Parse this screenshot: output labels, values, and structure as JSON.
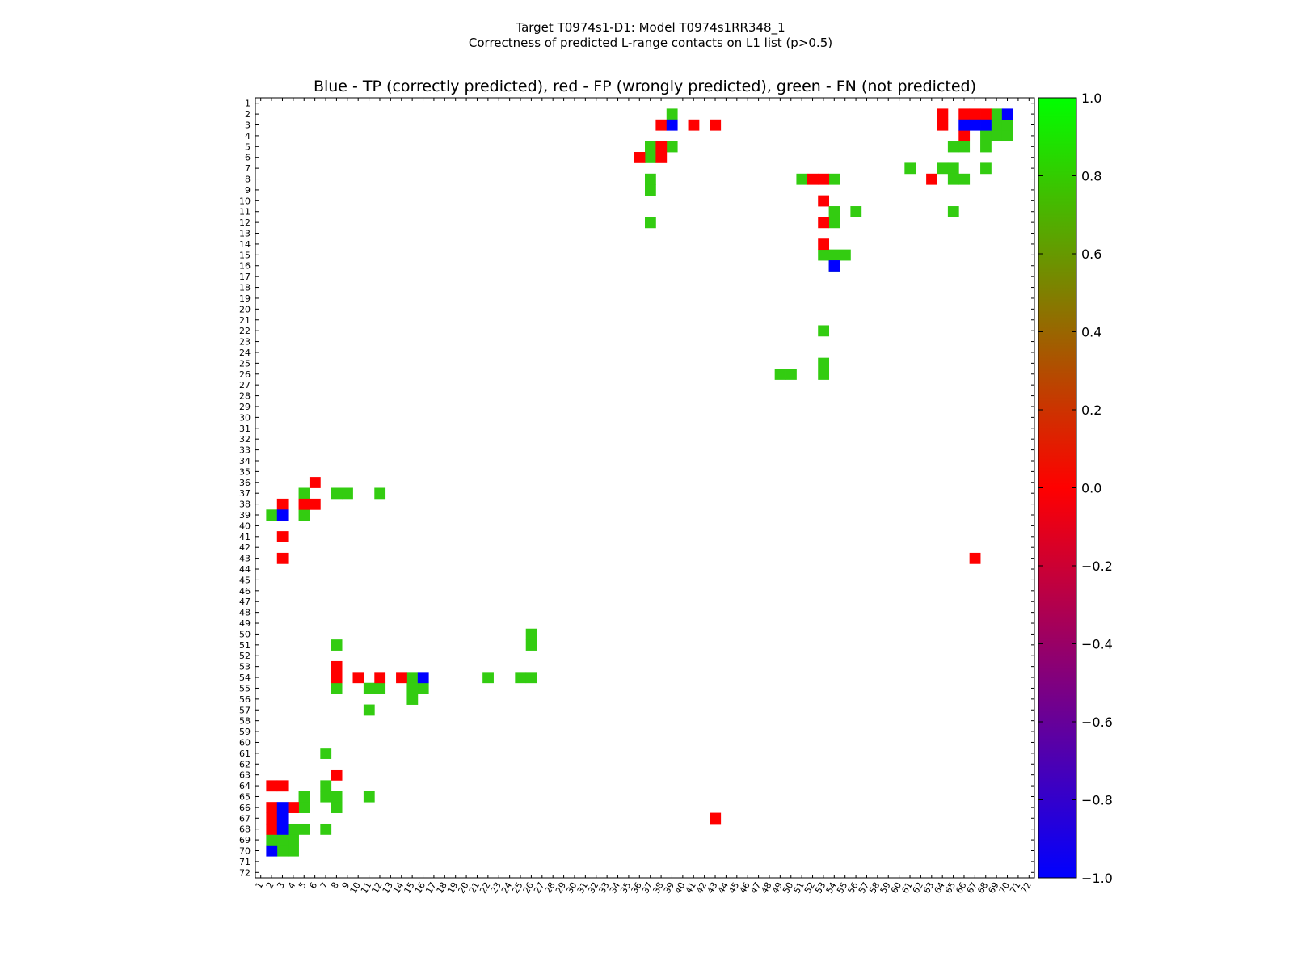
{
  "header": {
    "title_line1": "Target T0974s1-D1: Model T0974s1RR348_1",
    "title_line2": "Correctness of predicted L-range contacts on L1 list (p>0.5)"
  },
  "chart_data": {
    "type": "heatmap",
    "title": "Blue - TP (correctly predicted), red - FP (wrongly predicted), green - FN (not predicted)",
    "xlabel": "",
    "ylabel": "",
    "x_range": [
      1,
      72
    ],
    "y_range": [
      1,
      72
    ],
    "colors": {
      "TP": "#0000ff",
      "FP": "#ff0000",
      "FN": "#33cc11"
    },
    "colorbar": {
      "range": [
        -1.0,
        1.0
      ],
      "ticks": [
        "1.0",
        "0.8",
        "0.6",
        "0.4",
        "0.2",
        "0.0",
        "−0.2",
        "−0.4",
        "−0.6",
        "−0.8",
        "−1.0"
      ],
      "tick_values": [
        1.0,
        0.8,
        0.6,
        0.4,
        0.2,
        0.0,
        -0.2,
        -0.4,
        -0.6,
        -0.8,
        -1.0
      ],
      "gradient": [
        "#0000ff",
        "#ff0000",
        "#00ff00"
      ]
    },
    "cells": {
      "TP": [
        [
          39,
          3
        ],
        [
          66,
          3
        ],
        [
          67,
          3
        ],
        [
          68,
          3
        ],
        [
          70,
          2
        ],
        [
          16,
          54
        ],
        [
          54,
          16
        ],
        [
          3,
          39
        ],
        [
          3,
          66
        ],
        [
          3,
          67
        ],
        [
          3,
          68
        ],
        [
          2,
          70
        ],
        [
          39,
          3
        ]
      ],
      "FP": [
        [
          3,
          38
        ],
        [
          3,
          41
        ],
        [
          3,
          43
        ],
        [
          6,
          36
        ],
        [
          6,
          38
        ],
        [
          5,
          38
        ],
        [
          2,
          64
        ],
        [
          3,
          64
        ],
        [
          2,
          66
        ],
        [
          2,
          67
        ],
        [
          2,
          68
        ],
        [
          4,
          66
        ],
        [
          8,
          63
        ],
        [
          8,
          52
        ],
        [
          8,
          53
        ],
        [
          10,
          53
        ],
        [
          12,
          53
        ],
        [
          14,
          53
        ],
        [
          36,
          6
        ],
        [
          38,
          3
        ],
        [
          38,
          5
        ],
        [
          38,
          6
        ],
        [
          41,
          3
        ],
        [
          43,
          3
        ],
        [
          43,
          67
        ],
        [
          53,
          8
        ],
        [
          54,
          8
        ],
        [
          54,
          10
        ],
        [
          54,
          12
        ],
        [
          54,
          14
        ],
        [
          63,
          8
        ],
        [
          64,
          2
        ],
        [
          64,
          3
        ],
        [
          66,
          4
        ],
        [
          66,
          2
        ],
        [
          67,
          2
        ],
        [
          68,
          2
        ],
        [
          67,
          43
        ]
      ],
      "FN": [
        [
          2,
          39
        ],
        [
          5,
          37
        ],
        [
          5,
          39
        ],
        [
          6,
          37
        ],
        [
          2,
          69
        ],
        [
          3,
          69
        ],
        [
          3,
          70
        ],
        [
          4,
          68
        ],
        [
          4,
          69
        ],
        [
          4,
          70
        ],
        [
          5,
          65
        ],
        [
          5,
          66
        ],
        [
          5,
          68
        ],
        [
          7,
          61
        ],
        [
          7,
          64
        ],
        [
          7,
          65
        ],
        [
          7,
          68
        ],
        [
          8,
          65
        ],
        [
          8,
          66
        ],
        [
          8,
          51
        ],
        [
          8,
          54
        ],
        [
          8,
          37
        ],
        [
          9,
          37
        ],
        [
          12,
          37
        ],
        [
          11,
          54
        ],
        [
          11,
          56
        ],
        [
          11,
          65
        ],
        [
          12,
          54
        ],
        [
          15,
          53
        ],
        [
          15,
          54
        ],
        [
          15,
          55
        ],
        [
          16,
          54
        ],
        [
          22,
          53
        ],
        [
          25,
          53
        ],
        [
          26,
          53
        ],
        [
          26,
          49
        ],
        [
          26,
          50
        ],
        [
          37,
          5
        ],
        [
          37,
          8
        ],
        [
          37,
          9
        ],
        [
          37,
          12
        ],
        [
          39,
          2
        ],
        [
          39,
          5
        ],
        [
          50,
          26
        ],
        [
          51,
          26
        ],
        [
          51,
          8
        ],
        [
          54,
          15
        ],
        [
          54,
          22
        ],
        [
          54,
          25
        ],
        [
          54,
          26
        ],
        [
          55,
          8
        ],
        [
          55,
          11
        ],
        [
          55,
          12
        ],
        [
          55,
          16
        ],
        [
          55,
          15
        ],
        [
          56,
          15
        ],
        [
          57,
          11
        ],
        [
          61,
          7
        ],
        [
          64,
          7
        ],
        [
          65,
          5
        ],
        [
          65,
          7
        ],
        [
          65,
          8
        ],
        [
          65,
          11
        ],
        [
          66,
          5
        ],
        [
          66,
          8
        ],
        [
          68,
          4
        ],
        [
          68,
          5
        ],
        [
          68,
          7
        ],
        [
          69,
          2
        ],
        [
          69,
          3
        ],
        [
          70,
          3
        ],
        [
          70,
          4
        ],
        [
          69,
          4
        ]
      ]
    }
  }
}
